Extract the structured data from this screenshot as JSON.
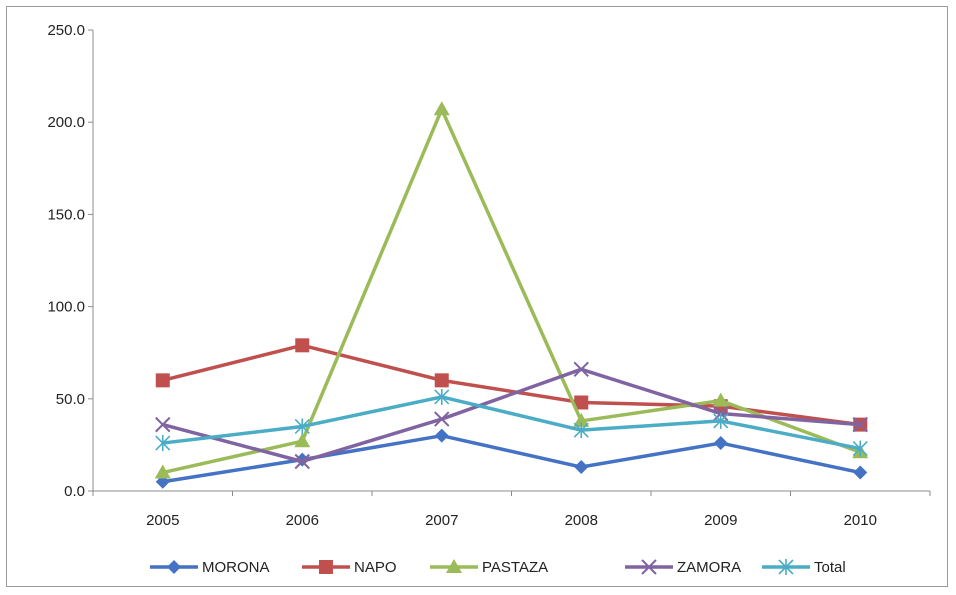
{
  "chart_data": {
    "type": "line",
    "categories": [
      "2005",
      "2006",
      "2007",
      "2008",
      "2009",
      "2010"
    ],
    "ylim": [
      0,
      250
    ],
    "y_ticks": [
      "0.0",
      "50.0",
      "100.0",
      "150.0",
      "200.0",
      "250.0"
    ],
    "grid": false,
    "legend_position": "bottom",
    "series": [
      {
        "name": "MORONA",
        "color": "#4472C4",
        "marker": "diamond",
        "values": [
          5,
          17,
          30,
          13,
          26,
          10
        ]
      },
      {
        "name": "NAPO",
        "color": "#C0504D",
        "marker": "square",
        "values": [
          60,
          79,
          60,
          48,
          46,
          36
        ]
      },
      {
        "name": "PASTAZA",
        "color": "#9BBB59",
        "marker": "triangle",
        "values": [
          10,
          27,
          207,
          38,
          49,
          21
        ]
      },
      {
        "name": "ZAMORA",
        "color": "#8064A2",
        "marker": "x",
        "values": [
          36,
          16,
          39,
          66,
          42,
          36
        ]
      },
      {
        "name": "Total",
        "color": "#4BACC6",
        "marker": "star",
        "values": [
          26,
          35,
          51,
          33,
          38,
          23
        ]
      }
    ]
  }
}
